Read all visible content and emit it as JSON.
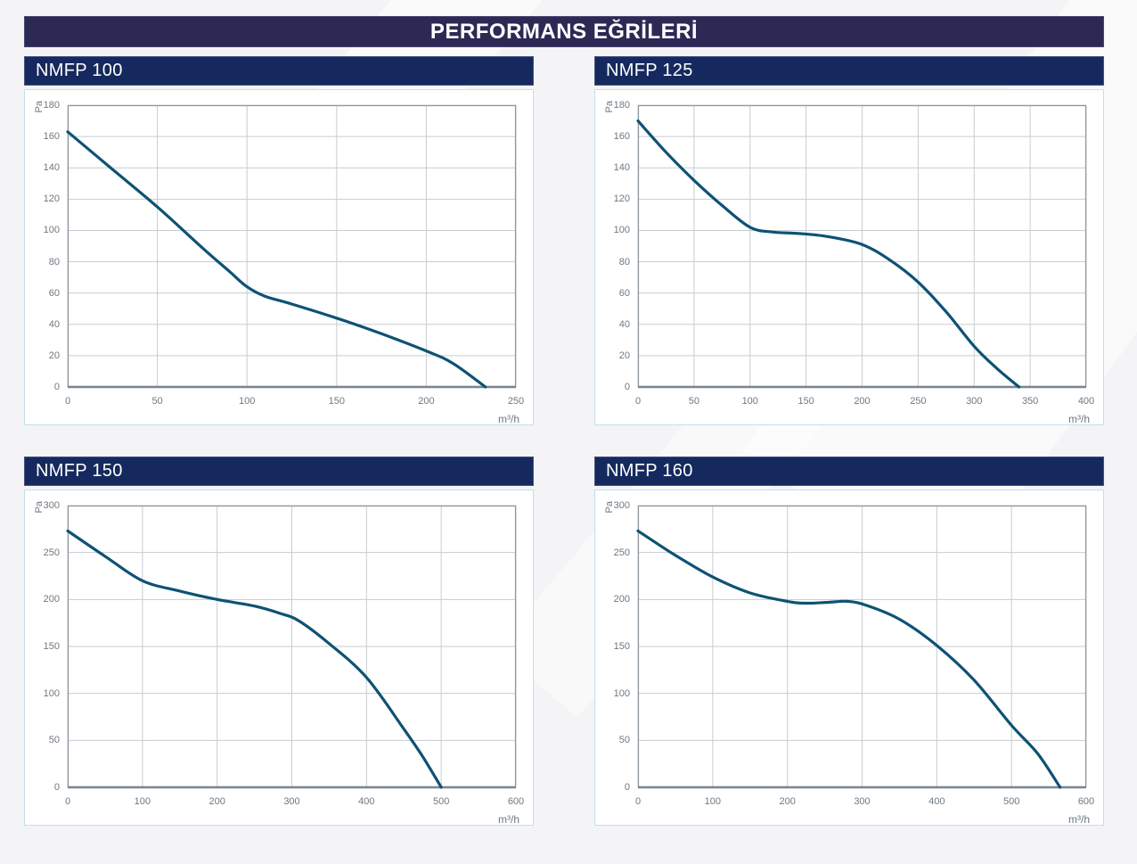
{
  "page": {
    "title": "PERFORMANS EĞRİLERİ"
  },
  "colors": {
    "title_bar": "#2d2955",
    "header_bar": "#15295e",
    "curve": "#0e5274",
    "grid_line": "#c7cdd2",
    "plot_frame": "#8e979f",
    "axis_line": "#7a858e",
    "panel_border": "#c3e0ec",
    "tick_text": "#6e7881"
  },
  "chart_data": [
    {
      "id": "nmfp-100",
      "type": "line",
      "title": "NMFP 100",
      "xlabel": "m³/h",
      "ylabel": "Pa",
      "xlim": [
        0,
        250
      ],
      "ylim": [
        0,
        180
      ],
      "x_ticks": [
        0,
        50,
        100,
        150,
        200,
        250
      ],
      "y_ticks": [
        0,
        20,
        40,
        60,
        80,
        100,
        120,
        140,
        160,
        180
      ],
      "grid": true,
      "legend": "none",
      "line_color": "#0e5274",
      "points": [
        [
          0,
          163
        ],
        [
          25,
          139
        ],
        [
          50,
          115
        ],
        [
          75,
          89
        ],
        [
          90,
          74
        ],
        [
          100,
          64
        ],
        [
          110,
          58
        ],
        [
          125,
          53
        ],
        [
          150,
          44
        ],
        [
          175,
          34
        ],
        [
          200,
          23
        ],
        [
          215,
          15
        ],
        [
          233,
          0
        ]
      ]
    },
    {
      "id": "nmfp-125",
      "type": "line",
      "title": "NMFP 125",
      "xlabel": "m³/h",
      "ylabel": "Pa",
      "xlim": [
        0,
        400
      ],
      "ylim": [
        0,
        180
      ],
      "x_ticks": [
        0,
        50,
        100,
        150,
        200,
        250,
        300,
        350,
        400
      ],
      "y_ticks": [
        0,
        20,
        40,
        60,
        80,
        100,
        120,
        140,
        160,
        180
      ],
      "grid": true,
      "legend": "none",
      "line_color": "#0e5274",
      "points": [
        [
          0,
          170
        ],
        [
          25,
          150
        ],
        [
          50,
          132
        ],
        [
          75,
          116
        ],
        [
          100,
          102
        ],
        [
          120,
          99
        ],
        [
          145,
          98
        ],
        [
          170,
          96
        ],
        [
          200,
          91
        ],
        [
          225,
          81
        ],
        [
          250,
          67
        ],
        [
          275,
          48
        ],
        [
          300,
          26
        ],
        [
          320,
          12
        ],
        [
          340,
          0
        ]
      ]
    },
    {
      "id": "nmfp-150",
      "type": "line",
      "title": "NMFP 150",
      "xlabel": "m³/h",
      "ylabel": "Pa",
      "xlim": [
        0,
        600
      ],
      "ylim": [
        0,
        300
      ],
      "x_ticks": [
        0,
        100,
        200,
        300,
        400,
        500,
        600
      ],
      "y_ticks": [
        0,
        50,
        100,
        150,
        200,
        250,
        300
      ],
      "grid": true,
      "legend": "none",
      "line_color": "#0e5274",
      "points": [
        [
          0,
          273
        ],
        [
          50,
          246
        ],
        [
          100,
          220
        ],
        [
          150,
          209
        ],
        [
          200,
          200
        ],
        [
          250,
          193
        ],
        [
          285,
          185
        ],
        [
          310,
          177
        ],
        [
          350,
          153
        ],
        [
          400,
          117
        ],
        [
          450,
          62
        ],
        [
          475,
          33
        ],
        [
          500,
          0
        ]
      ]
    },
    {
      "id": "nmfp-160",
      "type": "line",
      "title": "NMFP 160",
      "xlabel": "m³/h",
      "ylabel": "Pa",
      "xlim": [
        0,
        600
      ],
      "ylim": [
        0,
        300
      ],
      "x_ticks": [
        0,
        100,
        200,
        300,
        400,
        500,
        600
      ],
      "y_ticks": [
        0,
        50,
        100,
        150,
        200,
        250,
        300
      ],
      "grid": true,
      "legend": "none",
      "line_color": "#0e5274",
      "points": [
        [
          0,
          273
        ],
        [
          50,
          247
        ],
        [
          100,
          224
        ],
        [
          150,
          207
        ],
        [
          200,
          198
        ],
        [
          225,
          196
        ],
        [
          255,
          197
        ],
        [
          280,
          198
        ],
        [
          305,
          194
        ],
        [
          350,
          179
        ],
        [
          400,
          151
        ],
        [
          450,
          114
        ],
        [
          500,
          66
        ],
        [
          535,
          36
        ],
        [
          565,
          0
        ]
      ]
    }
  ]
}
